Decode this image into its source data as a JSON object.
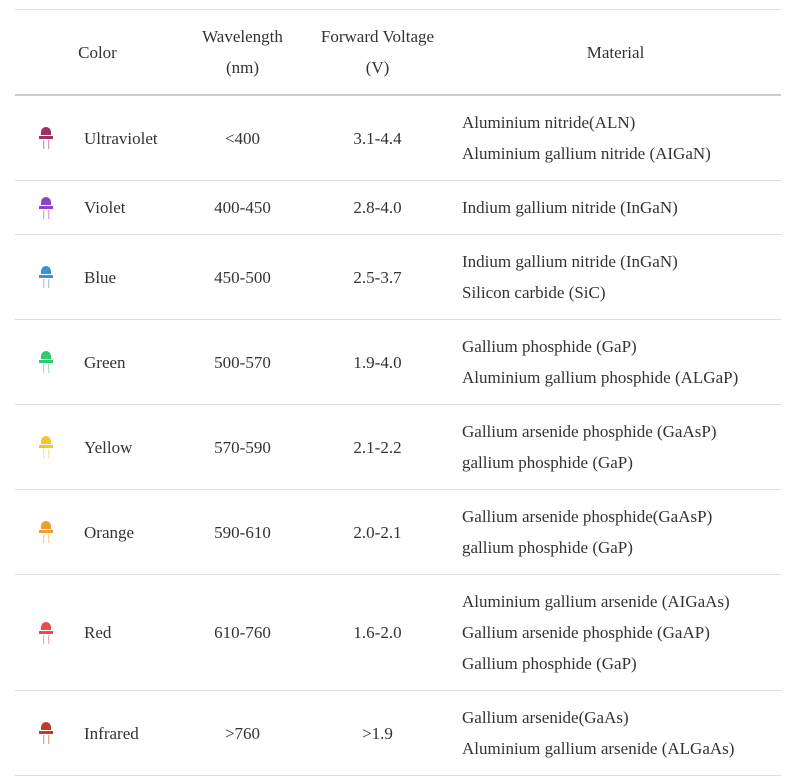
{
  "table": {
    "header": [
      [
        "Color"
      ],
      [
        "Wavelength",
        "(nm)"
      ],
      [
        "Forward Voltage",
        "(V)"
      ],
      [
        "Material"
      ]
    ],
    "rows": [
      {
        "icon_color": "#9c2f63",
        "color": "Ultraviolet",
        "wavelength": "<400",
        "voltage": "3.1-4.4",
        "material": [
          "Aluminium nitride(ALN)",
          "Aluminium gallium nitride (AIGaN)"
        ]
      },
      {
        "icon_color": "#8e44c9",
        "color": "Violet",
        "wavelength": "400-450",
        "voltage": "2.8-4.0",
        "material": [
          "Indium gallium nitride (InGaN)"
        ]
      },
      {
        "icon_color": "#3a93d6",
        "color": "Blue",
        "wavelength": "450-500",
        "voltage": "2.5-3.7",
        "material": [
          "Indium gallium nitride (InGaN)",
          "Silicon carbide (SiC)"
        ]
      },
      {
        "icon_color": "#2ecc71",
        "color": "Green",
        "wavelength": "500-570",
        "voltage": "1.9-4.0",
        "material": [
          "Gallium phosphide (GaP)",
          "Aluminium gallium phosphide (ALGaP)"
        ]
      },
      {
        "icon_color": "#f4c531",
        "color": "Yellow",
        "wavelength": "570-590",
        "voltage": "2.1-2.2",
        "material": [
          "Gallium arsenide phosphide (GaAsP)",
          "gallium phosphide (GaP)"
        ]
      },
      {
        "icon_color": "#f39c33",
        "color": "Orange",
        "wavelength": "590-610",
        "voltage": "2.0-2.1",
        "material": [
          "Gallium arsenide phosphide(GaAsP)",
          "gallium phosphide (GaP)"
        ]
      },
      {
        "icon_color": "#e74c4c",
        "color": "Red",
        "wavelength": "610-760",
        "voltage": "1.6-2.0",
        "material": [
          "Aluminium gallium arsenide (AIGaAs)",
          "Gallium arsenide phosphide (GaAP)",
          "Gallium phosphide (GaP)"
        ]
      },
      {
        "icon_color": "#c0392b",
        "color": "Infrared",
        "wavelength": ">760",
        "voltage": ">1.9",
        "material": [
          "Gallium arsenide(GaAs)",
          "Aluminium gallium arsenide (ALGaAs)"
        ]
      }
    ]
  }
}
